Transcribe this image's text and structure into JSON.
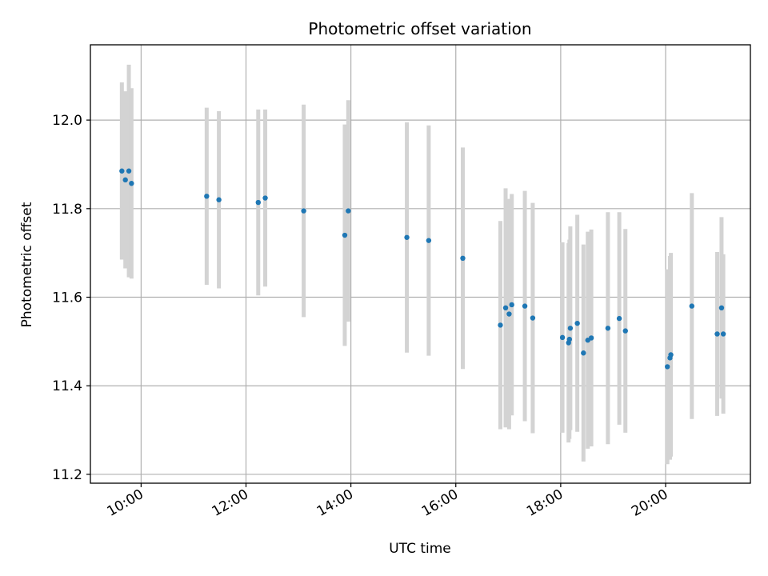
{
  "chart_data": {
    "type": "scatter",
    "title": "Photometric offset variation",
    "xlabel": "UTC time",
    "ylabel": "Photometric offset",
    "xlim": [
      "09:02",
      "21:37"
    ],
    "ylim": [
      11.18,
      12.17
    ],
    "xticks": [
      "10:00",
      "12:00",
      "14:00",
      "16:00",
      "18:00",
      "20:00"
    ],
    "yticks": [
      "11.2",
      "11.4",
      "11.6",
      "11.8",
      "12.0"
    ],
    "grid": true,
    "colors": {
      "points": "#1f77b4",
      "errorbars": "#d3d3d3",
      "grid": "#b0b0b0"
    },
    "points": [
      {
        "x": "09:38",
        "y": 11.885,
        "err": 0.2
      },
      {
        "x": "09:42",
        "y": 11.865,
        "err": 0.2
      },
      {
        "x": "09:46",
        "y": 11.885,
        "err": 0.24
      },
      {
        "x": "09:49",
        "y": 11.857,
        "err": 0.215
      },
      {
        "x": "11:15",
        "y": 11.828,
        "err": 0.2
      },
      {
        "x": "11:29",
        "y": 11.82,
        "err": 0.2
      },
      {
        "x": "12:14",
        "y": 11.814,
        "err": 0.21
      },
      {
        "x": "12:22",
        "y": 11.824,
        "err": 0.2
      },
      {
        "x": "13:06",
        "y": 11.795,
        "err": 0.24
      },
      {
        "x": "13:53",
        "y": 11.74,
        "err": 0.25
      },
      {
        "x": "13:57",
        "y": 11.795,
        "err": 0.25
      },
      {
        "x": "15:04",
        "y": 11.735,
        "err": 0.26
      },
      {
        "x": "15:29",
        "y": 11.728,
        "err": 0.26
      },
      {
        "x": "16:08",
        "y": 11.688,
        "err": 0.25
      },
      {
        "x": "16:51",
        "y": 11.537,
        "err": 0.235
      },
      {
        "x": "16:57",
        "y": 11.576,
        "err": 0.27
      },
      {
        "x": "17:01",
        "y": 11.562,
        "err": 0.26
      },
      {
        "x": "17:04",
        "y": 11.583,
        "err": 0.25
      },
      {
        "x": "17:19",
        "y": 11.58,
        "err": 0.26
      },
      {
        "x": "17:28",
        "y": 11.553,
        "err": 0.26
      },
      {
        "x": "18:02",
        "y": 11.509,
        "err": 0.215
      },
      {
        "x": "18:09",
        "y": 11.497,
        "err": 0.225
      },
      {
        "x": "18:10",
        "y": 11.505,
        "err": 0.225
      },
      {
        "x": "18:11",
        "y": 11.53,
        "err": 0.23
      },
      {
        "x": "18:19",
        "y": 11.541,
        "err": 0.245
      },
      {
        "x": "18:26",
        "y": 11.474,
        "err": 0.245
      },
      {
        "x": "18:31",
        "y": 11.503,
        "err": 0.245
      },
      {
        "x": "18:35",
        "y": 11.508,
        "err": 0.245
      },
      {
        "x": "18:54",
        "y": 11.53,
        "err": 0.262
      },
      {
        "x": "19:07",
        "y": 11.552,
        "err": 0.24
      },
      {
        "x": "19:14",
        "y": 11.524,
        "err": 0.23
      },
      {
        "x": "20:02",
        "y": 11.443,
        "err": 0.22
      },
      {
        "x": "20:05",
        "y": 11.463,
        "err": 0.23
      },
      {
        "x": "20:06",
        "y": 11.47,
        "err": 0.23
      },
      {
        "x": "20:30",
        "y": 11.58,
        "err": 0.255
      },
      {
        "x": "20:59",
        "y": 11.517,
        "err": 0.185
      },
      {
        "x": "21:04",
        "y": 11.576,
        "err": 0.205
      },
      {
        "x": "21:06",
        "y": 11.517,
        "err": 0.18
      }
    ]
  }
}
